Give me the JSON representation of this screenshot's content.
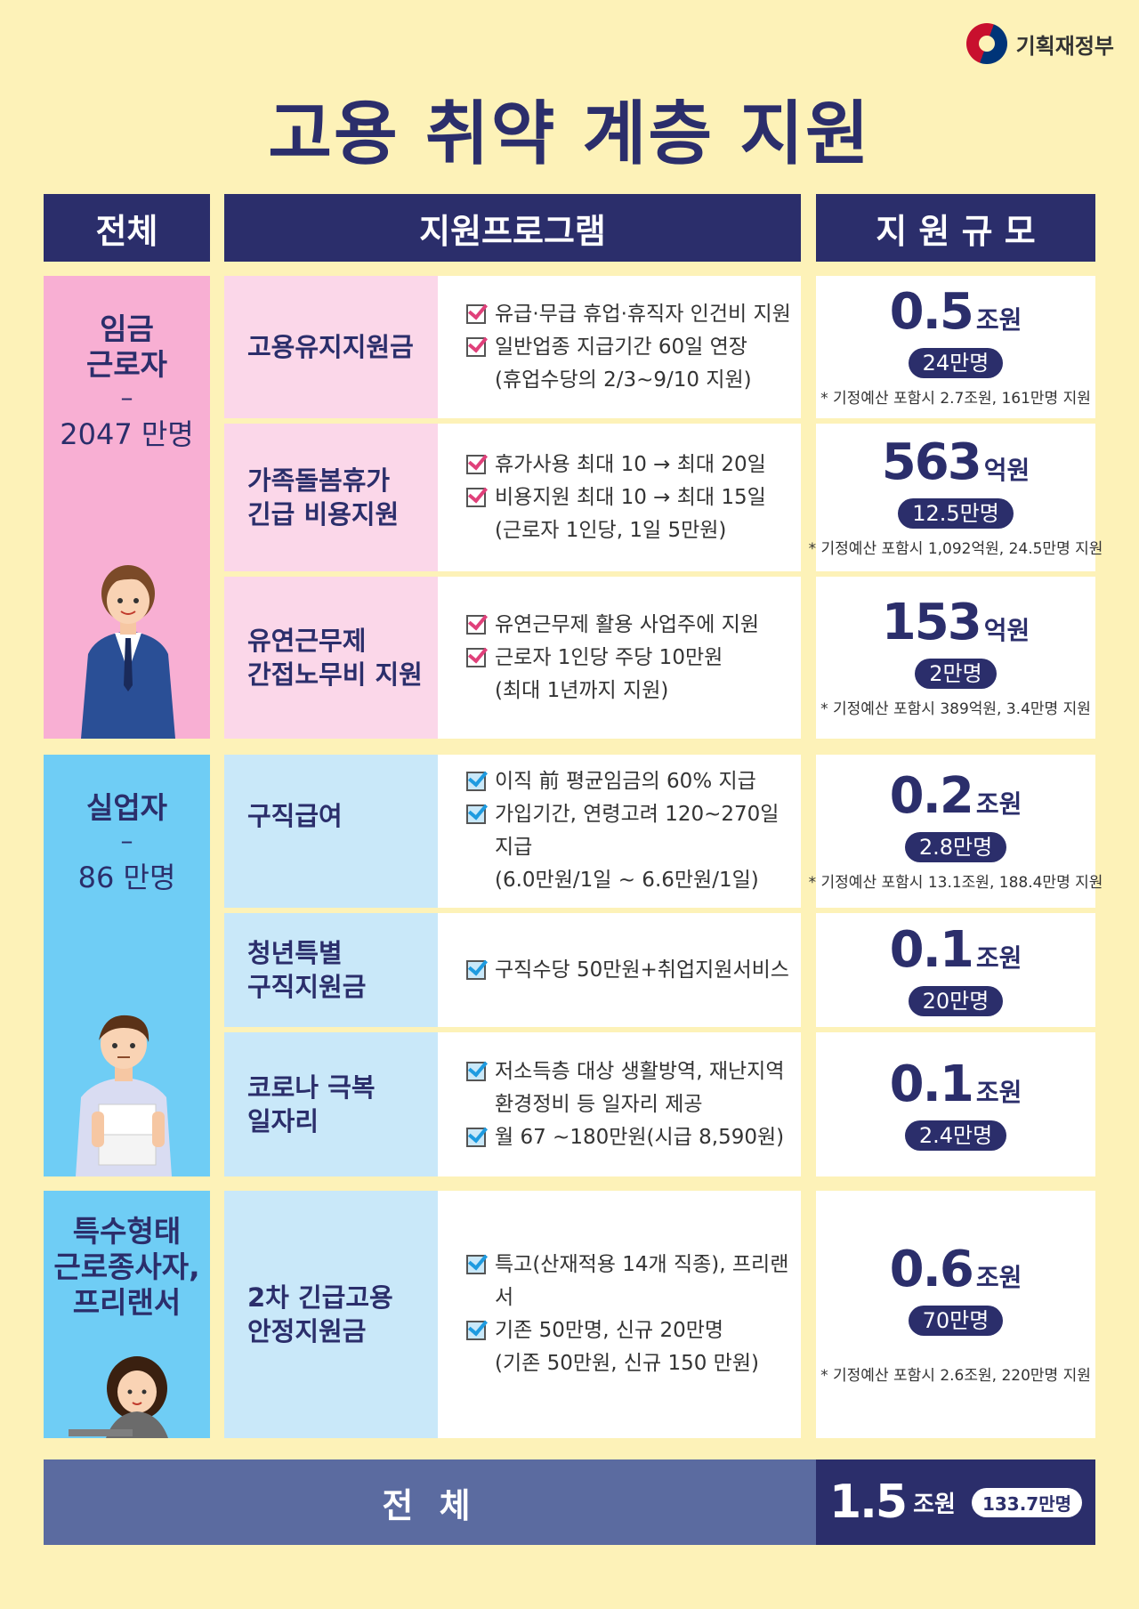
{
  "logo": {
    "text": "기획재정부"
  },
  "title": "고용 취약 계층 지원",
  "headers": {
    "group": "전체",
    "program": "지원프로그램",
    "scale": "지 원 규 모"
  },
  "groups": [
    {
      "title": [
        "임금",
        "근로자"
      ],
      "dash": "–",
      "count": "2047 만명"
    },
    {
      "title": [
        "실업자"
      ],
      "dash": "–",
      "count": "86 만명"
    },
    {
      "title": [
        "특수형태",
        "근로종사자,",
        "프리랜서"
      ]
    }
  ],
  "rows": [
    {
      "program": [
        "고용유지지원금"
      ],
      "checks": [
        [
          "유급·무급 휴업·휴직자 인건비 지원"
        ],
        [
          "일반업종 지급기간 60일 연장",
          "(휴업수당의 2/3~9/10 지원)"
        ]
      ],
      "amount": "0.5",
      "unit": "조원",
      "people": "24만명",
      "note": "* 기정예산 포함시 2.7조원, 161만명 지원"
    },
    {
      "program": [
        "가족돌봄휴가",
        "긴급 비용지원"
      ],
      "checks": [
        [
          "휴가사용 최대 10 → 최대 20일"
        ],
        [
          "비용지원 최대 10 → 최대 15일",
          "(근로자 1인당, 1일 5만원)"
        ]
      ],
      "amount": "563",
      "unit": "억원",
      "people": "12.5만명",
      "note": "* 기정예산 포함시 1,092억원, 24.5만명 지원"
    },
    {
      "program": [
        "유연근무제",
        "간접노무비 지원"
      ],
      "checks": [
        [
          "유연근무제 활용 사업주에 지원"
        ],
        [
          "근로자 1인당 주당 10만원",
          "(최대 1년까지 지원)"
        ]
      ],
      "amount": "153",
      "unit": "억원",
      "people": "2만명",
      "note": "* 기정예산 포함시 389억원, 3.4만명 지원"
    },
    {
      "program": [
        "구직급여"
      ],
      "checks": [
        [
          "이직 前 평균임금의 60% 지급"
        ],
        [
          "가입기간, 연령고려 120~270일 지급",
          "(6.0만원/1일 ~ 6.6만원/1일)"
        ]
      ],
      "amount": "0.2",
      "unit": "조원",
      "people": "2.8만명",
      "note": "* 기정예산 포함시 13.1조원, 188.4만명 지원"
    },
    {
      "program": [
        "청년특별",
        "구직지원금"
      ],
      "checks": [
        [
          "구직수당 50만원+취업지원서비스"
        ]
      ],
      "amount": "0.1",
      "unit": "조원",
      "people": "20만명",
      "note": ""
    },
    {
      "program": [
        "코로나 극복",
        "일자리"
      ],
      "checks": [
        [
          "저소득층 대상 생활방역, 재난지역",
          "환경정비 등 일자리 제공"
        ],
        [
          "월 67 ~180만원(시급 8,590원)"
        ]
      ],
      "amount": "0.1",
      "unit": "조원",
      "people": "2.4만명",
      "note": ""
    },
    {
      "program": [
        "2차 긴급고용",
        "안정지원금"
      ],
      "checks": [
        [
          "특고(산재적용 14개 직종), 프리랜서"
        ],
        [
          "기존 50만명, 신규 20만명",
          "(기존 50만원, 신규 150 만원)"
        ]
      ],
      "amount": "0.6",
      "unit": "조원",
      "people": "70만명",
      "note": "* 기정예산 포함시 2.6조원, 220만명 지원"
    }
  ],
  "total": {
    "label": "전 체",
    "amount": "1.5",
    "unit": "조원",
    "people": "133.7만명"
  }
}
